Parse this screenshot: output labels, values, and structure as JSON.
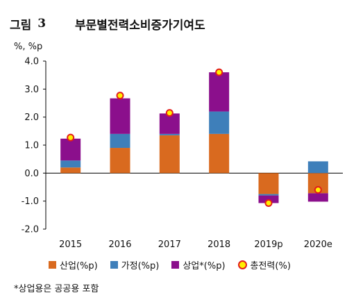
{
  "figure": {
    "label": "그림",
    "number": "3",
    "title": "부문별전력소비증가기여도",
    "unit": "%, %p",
    "footnote": "*상업용은 공공용 포함"
  },
  "chart_data": {
    "type": "bar",
    "stacked": true,
    "categories": [
      "2015",
      "2016",
      "2017",
      "2018",
      "2019p",
      "2020e"
    ],
    "series": [
      {
        "name": "산업(%p)",
        "color": "#d96a1f",
        "values": [
          0.2,
          0.9,
          1.35,
          1.4,
          -0.75,
          -0.72
        ]
      },
      {
        "name": "가정(%p)",
        "color": "#3e7fba",
        "values": [
          0.25,
          0.5,
          0.05,
          0.8,
          -0.05,
          0.42
        ]
      },
      {
        "name": "상업*(%p)",
        "color": "#8b0f8c",
        "values": [
          0.78,
          1.27,
          0.73,
          1.4,
          -0.27,
          -0.3
        ]
      }
    ],
    "total": {
      "name": "총전력(%)",
      "fill": "#ffee00",
      "stroke": "#e21c1c",
      "values": [
        1.27,
        2.77,
        2.15,
        3.6,
        -1.07,
        -0.6
      ]
    },
    "ylim": [
      -2.0,
      4.0
    ],
    "yticks": [
      "-2.0",
      "-1.0",
      "0.0",
      "1.0",
      "2.0",
      "3.0",
      "4.0"
    ],
    "grid": false,
    "legend_position": "bottom"
  }
}
